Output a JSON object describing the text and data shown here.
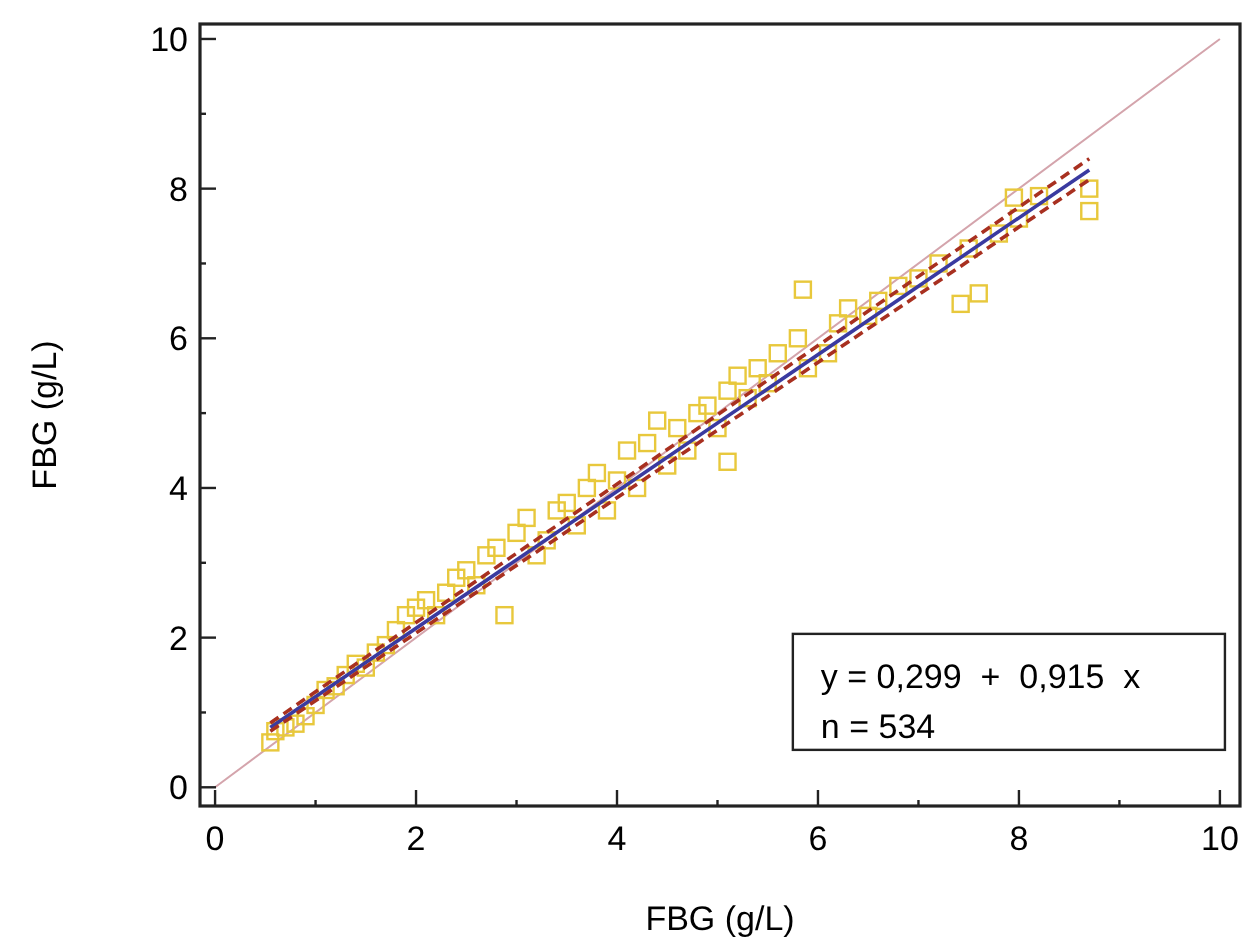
{
  "chart_data": {
    "type": "scatter",
    "xlabel": "FBG (g/L)",
    "ylabel": "FBG (g/L)",
    "xlim": [
      -0.15,
      10.2
    ],
    "ylim": [
      -0.25,
      10.2
    ],
    "xticks": [
      0,
      {
        "value": 1,
        "label": null
      },
      2,
      {
        "value": 3,
        "label": null
      },
      4,
      {
        "value": 5,
        "label": null
      },
      6,
      {
        "value": 7,
        "label": null
      },
      8,
      {
        "value": 9,
        "label": null
      },
      10
    ],
    "yticks": [
      0,
      {
        "value": 1,
        "label": null
      },
      2,
      {
        "value": 3,
        "label": null
      },
      4,
      {
        "value": 5,
        "label": null
      },
      6,
      {
        "value": 7,
        "label": null
      },
      8,
      {
        "value": 9,
        "label": null
      },
      10
    ],
    "grid": false,
    "marker": "square",
    "series": [
      {
        "type": "line",
        "marker": "none",
        "color": "#d4a4ac",
        "x": [
          0,
          10
        ],
        "values": [
          0,
          10
        ]
      },
      {
        "color": "#e8c83c",
        "x": [
          0.55,
          0.6,
          0.7,
          0.8,
          0.9,
          1.0,
          1.1,
          1.2,
          1.3,
          1.4,
          1.5,
          1.6,
          1.7,
          1.8,
          1.9,
          2.0,
          2.1,
          2.2,
          2.3,
          2.4,
          2.5,
          2.6,
          2.7,
          2.8,
          2.88,
          3.0,
          3.1,
          3.2,
          3.3,
          3.4,
          3.5,
          3.6,
          3.7,
          3.8,
          3.9,
          4.0,
          4.1,
          4.2,
          4.3,
          4.4,
          4.5,
          4.6,
          4.7,
          4.8,
          4.9,
          5.0,
          5.1,
          5.1,
          5.2,
          5.3,
          5.4,
          5.5,
          5.6,
          5.8,
          5.85,
          5.9,
          6.1,
          6.2,
          6.3,
          6.5,
          6.6,
          6.8,
          7.0,
          7.2,
          7.42,
          7.6,
          7.5,
          7.8,
          8.0,
          7.95,
          8.2,
          8.7,
          8.7
        ],
        "values": [
          0.6,
          0.75,
          0.8,
          0.85,
          0.95,
          1.1,
          1.3,
          1.35,
          1.5,
          1.65,
          1.6,
          1.8,
          1.9,
          2.1,
          2.3,
          2.4,
          2.5,
          2.3,
          2.6,
          2.8,
          2.9,
          2.7,
          3.1,
          3.2,
          2.3,
          3.4,
          3.6,
          3.1,
          3.3,
          3.7,
          3.8,
          3.5,
          4.0,
          4.2,
          3.7,
          4.1,
          4.5,
          4.0,
          4.6,
          4.9,
          4.3,
          4.8,
          4.5,
          5.0,
          5.1,
          4.8,
          5.3,
          4.35,
          5.5,
          5.2,
          5.6,
          5.4,
          5.8,
          6.0,
          6.65,
          5.6,
          5.8,
          6.2,
          6.4,
          6.3,
          6.5,
          6.7,
          6.8,
          7.0,
          6.46,
          6.6,
          7.2,
          7.4,
          7.6,
          7.88,
          7.9,
          8.0,
          7.7
        ]
      },
      {
        "type": "line",
        "marker": "none",
        "color": "#3a3aa0",
        "x": [
          0.55,
          8.7
        ],
        "values": [
          0.8,
          8.25
        ]
      },
      {
        "type": "line",
        "marker": "none",
        "color": "#a83020",
        "line_style": "dashed",
        "x": [
          0.55,
          8.7
        ],
        "values": [
          0.86,
          8.4
        ]
      },
      {
        "type": "line",
        "marker": "none",
        "color": "#a83020",
        "line_style": "dashed",
        "x": [
          0.55,
          8.7
        ],
        "values": [
          0.75,
          8.12
        ]
      }
    ],
    "annotations": [
      "y = 0,299  +  0,915  x",
      "n = 534"
    ]
  }
}
